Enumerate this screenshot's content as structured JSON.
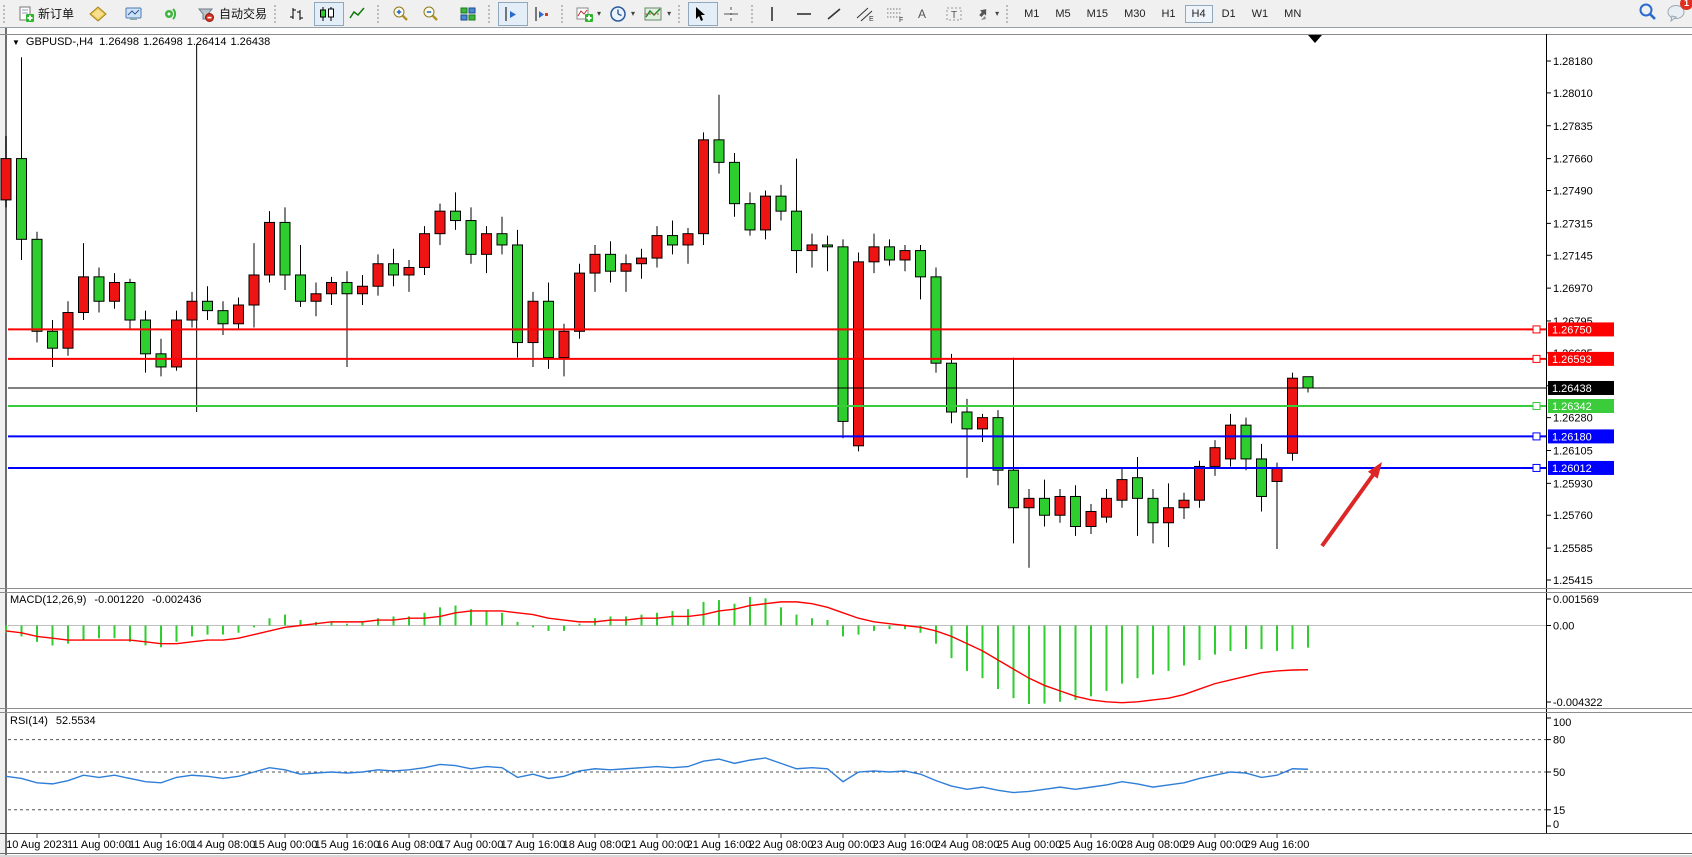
{
  "toolbar": {
    "new_order_label": "新订单",
    "auto_trading_label": "自动交易",
    "timeframes": [
      "M1",
      "M5",
      "M15",
      "M30",
      "H1",
      "H4",
      "D1",
      "W1",
      "MN"
    ],
    "active_timeframe": "H4",
    "active_chart_type": "candles",
    "notification_count": "1"
  },
  "chart": {
    "title": "GBPUSD-,H4",
    "ohlc": {
      "open": "1.26498",
      "high": "1.26498",
      "low": "1.26414",
      "close": "1.26438"
    },
    "price_ticks": [
      "1.28180",
      "1.28010",
      "1.27835",
      "1.27660",
      "1.27490",
      "1.27315",
      "1.27145",
      "1.26970",
      "1.26795",
      "1.26625",
      "1.26450",
      "1.26280",
      "1.26105",
      "1.25930",
      "1.25760",
      "1.25585",
      "1.25415"
    ],
    "date_labels": [
      "10 Aug 2023",
      "11 Aug 00:00",
      "11 Aug 16:00",
      "14 Aug 08:00",
      "15 Aug 00:00",
      "15 Aug 16:00",
      "16 Aug 08:00",
      "17 Aug 00:00",
      "17 Aug 16:00",
      "18 Aug 08:00",
      "21 Aug 00:00",
      "21 Aug 16:00",
      "22 Aug 08:00",
      "23 Aug 00:00",
      "23 Aug 16:00",
      "24 Aug 08:00",
      "25 Aug 00:00",
      "25 Aug 16:00",
      "28 Aug 08:00",
      "29 Aug 00:00",
      "29 Aug 16:00"
    ],
    "hlines": [
      {
        "price": 1.2675,
        "label": "1.26750",
        "color": "#ff0000",
        "width": 2,
        "is_price": false
      },
      {
        "price": 1.26593,
        "label": "1.26593",
        "color": "#ff0000",
        "width": 2,
        "is_price": false
      },
      {
        "price": 1.26438,
        "label": "1.26438",
        "color": "#000000",
        "width": 1,
        "is_price": true
      },
      {
        "price": 1.26342,
        "label": "1.26342",
        "color": "#3bcc3b",
        "width": 2,
        "is_price": false
      },
      {
        "price": 1.2618,
        "label": "1.26180",
        "color": "#0000ff",
        "width": 2,
        "is_price": false
      },
      {
        "price": 1.26012,
        "label": "1.26012",
        "color": "#0000ff",
        "width": 2,
        "is_price": false
      }
    ],
    "vline": {
      "bar_index": 12.3,
      "top_price": 1.2827,
      "bottom_price": 1.2631
    },
    "arrow": {
      "direction": "up-right",
      "color": "#dd2626"
    },
    "bull_color": "#ee1414",
    "bear_color": "#2fce2f",
    "wick_color": "#000000",
    "chart_data": {
      "type": "candlestick",
      "symbol": "GBPUSD",
      "period": "H4",
      "ylim": [
        1.25415,
        1.2818
      ],
      "candles": [
        [
          1.2744,
          1.2778,
          1.274,
          1.2766
        ],
        [
          1.2766,
          1.282,
          1.2712,
          1.2723
        ],
        [
          1.2723,
          1.2727,
          1.2668,
          1.2674
        ],
        [
          1.2674,
          1.268,
          1.2655,
          1.2665
        ],
        [
          1.2665,
          1.269,
          1.2661,
          1.2684
        ],
        [
          1.2684,
          1.2721,
          1.268,
          1.2703
        ],
        [
          1.2703,
          1.2708,
          1.2684,
          1.269
        ],
        [
          1.269,
          1.2705,
          1.2686,
          1.27
        ],
        [
          1.27,
          1.2702,
          1.2675,
          1.268
        ],
        [
          1.268,
          1.2685,
          1.2652,
          1.2662
        ],
        [
          1.2662,
          1.267,
          1.265,
          1.2655
        ],
        [
          1.2655,
          1.2685,
          1.2653,
          1.268
        ],
        [
          1.268,
          1.2695,
          1.2676,
          1.269
        ],
        [
          1.269,
          1.2698,
          1.268,
          1.2685
        ],
        [
          1.2685,
          1.269,
          1.2672,
          1.2678
        ],
        [
          1.2678,
          1.2692,
          1.2675,
          1.2688
        ],
        [
          1.2688,
          1.2721,
          1.2676,
          1.2704
        ],
        [
          1.2704,
          1.2738,
          1.27,
          1.2732
        ],
        [
          1.2732,
          1.274,
          1.2696,
          1.2704
        ],
        [
          1.2704,
          1.272,
          1.2687,
          1.269
        ],
        [
          1.269,
          1.27,
          1.2682,
          1.2694
        ],
        [
          1.2694,
          1.2703,
          1.2688,
          1.27
        ],
        [
          1.27,
          1.2706,
          1.2655,
          1.2694
        ],
        [
          1.2694,
          1.2704,
          1.2688,
          1.2698
        ],
        [
          1.2698,
          1.2715,
          1.2693,
          1.271
        ],
        [
          1.271,
          1.2718,
          1.2698,
          1.2704
        ],
        [
          1.2704,
          1.2712,
          1.2695,
          1.2708
        ],
        [
          1.2708,
          1.273,
          1.2704,
          1.2726
        ],
        [
          1.2726,
          1.2742,
          1.272,
          1.2738
        ],
        [
          1.2738,
          1.2748,
          1.2728,
          1.2733
        ],
        [
          1.2733,
          1.274,
          1.271,
          1.2715
        ],
        [
          1.2715,
          1.273,
          1.2705,
          1.2726
        ],
        [
          1.2726,
          1.2735,
          1.2715,
          1.272
        ],
        [
          1.272,
          1.2728,
          1.266,
          1.2668
        ],
        [
          1.2668,
          1.2695,
          1.2655,
          1.269
        ],
        [
          1.269,
          1.27,
          1.2654,
          1.266
        ],
        [
          1.266,
          1.2678,
          1.265,
          1.2674
        ],
        [
          1.2674,
          1.271,
          1.267,
          1.2705
        ],
        [
          1.2705,
          1.272,
          1.2695,
          1.2715
        ],
        [
          1.2715,
          1.2722,
          1.27,
          1.2706
        ],
        [
          1.2706,
          1.2715,
          1.2695,
          1.271
        ],
        [
          1.271,
          1.2718,
          1.2702,
          1.2713
        ],
        [
          1.2713,
          1.273,
          1.2708,
          1.2725
        ],
        [
          1.2725,
          1.2733,
          1.2715,
          1.272
        ],
        [
          1.272,
          1.2729,
          1.271,
          1.2726
        ],
        [
          1.2726,
          1.278,
          1.272,
          1.2776
        ],
        [
          1.2776,
          1.28,
          1.2758,
          1.2764
        ],
        [
          1.2764,
          1.2769,
          1.2735,
          1.2742
        ],
        [
          1.2742,
          1.2748,
          1.2725,
          1.2728
        ],
        [
          1.2728,
          1.2749,
          1.2723,
          1.2746
        ],
        [
          1.2746,
          1.2752,
          1.2733,
          1.2738
        ],
        [
          1.2738,
          1.2766,
          1.2705,
          1.2717
        ],
        [
          1.2717,
          1.2726,
          1.2708,
          1.272
        ],
        [
          1.272,
          1.2725,
          1.2706,
          1.2719
        ],
        [
          1.2719,
          1.2723,
          1.2617,
          1.2626
        ],
        [
          1.2613,
          1.2716,
          1.261,
          1.2711
        ],
        [
          1.2711,
          1.2726,
          1.2705,
          1.2719
        ],
        [
          1.2719,
          1.2723,
          1.2709,
          1.2712
        ],
        [
          1.2712,
          1.272,
          1.2706,
          1.2717
        ],
        [
          1.2717,
          1.272,
          1.2691,
          1.2703
        ],
        [
          1.2703,
          1.2708,
          1.2652,
          1.2657
        ],
        [
          1.2657,
          1.2662,
          1.2625,
          1.2631
        ],
        [
          1.2631,
          1.2638,
          1.2596,
          1.2622
        ],
        [
          1.2622,
          1.263,
          1.2615,
          1.2628
        ],
        [
          1.2628,
          1.2632,
          1.2592,
          1.26
        ],
        [
          1.26,
          1.266,
          1.2561,
          1.258
        ],
        [
          1.258,
          1.259,
          1.2548,
          1.2585
        ],
        [
          1.2585,
          1.2595,
          1.257,
          1.2576
        ],
        [
          1.2576,
          1.259,
          1.2572,
          1.2586
        ],
        [
          1.2586,
          1.2592,
          1.2565,
          1.257
        ],
        [
          1.257,
          1.2582,
          1.2566,
          1.2578
        ],
        [
          1.2575,
          1.259,
          1.2572,
          1.2585
        ],
        [
          1.2584,
          1.2601,
          1.258,
          1.2595
        ],
        [
          1.2596,
          1.2607,
          1.2565,
          1.2585
        ],
        [
          1.2585,
          1.259,
          1.2561,
          1.2572
        ],
        [
          1.2572,
          1.2593,
          1.2559,
          1.258
        ],
        [
          1.258,
          1.2588,
          1.2574,
          1.2584
        ],
        [
          1.2584,
          1.2605,
          1.258,
          1.2602
        ],
        [
          1.2602,
          1.2616,
          1.2597,
          1.2612
        ],
        [
          1.2606,
          1.263,
          1.2602,
          1.2624
        ],
        [
          1.2624,
          1.2628,
          1.26,
          1.2606
        ],
        [
          1.2606,
          1.2614,
          1.2578,
          1.2586
        ],
        [
          1.2594,
          1.2604,
          1.2558,
          1.2601
        ],
        [
          1.2609,
          1.2652,
          1.2605,
          1.2649
        ],
        [
          1.26498,
          1.26498,
          1.26414,
          1.26438
        ]
      ]
    }
  },
  "macd": {
    "label": "MACD(12,26,9)",
    "main_value": "-0.001220",
    "signal_value": "-0.002436",
    "histogram_color": "#2fce2f",
    "signal_color": "#ff0000",
    "ticks": [
      {
        "v": 0.001569,
        "label": "0.001569"
      },
      {
        "v": 0,
        "label": "0.00"
      },
      {
        "v": -0.004322,
        "label": "-0.004322"
      }
    ],
    "main": [
      -0.0004,
      -0.0006,
      -0.0009,
      -0.0011,
      -0.001,
      -0.0008,
      -0.0007,
      -0.0007,
      -0.0009,
      -0.0011,
      -0.0012,
      -0.0009,
      -0.0006,
      -0.0005,
      -0.0005,
      -0.0004,
      -0.0001,
      0.0004,
      0.0006,
      0.0003,
      0.0002,
      0.0002,
      0.0001,
      0.0002,
      0.0004,
      0.0005,
      0.0005,
      0.0007,
      0.001,
      0.0011,
      0.0009,
      0.0008,
      0.0007,
      0.0002,
      -0.0001,
      -0.0003,
      -0.0003,
      0.0001,
      0.0004,
      0.0005,
      0.0005,
      0.0006,
      0.0007,
      0.0008,
      0.0009,
      0.0013,
      0.0014,
      0.0012,
      0.00157,
      0.0015,
      0.001,
      0.0006,
      0.0004,
      0.0003,
      -0.0006,
      -0.0005,
      -0.0003,
      -0.0002,
      -0.0002,
      -0.0004,
      -0.001,
      -0.0018,
      -0.0025,
      -0.0029,
      -0.0035,
      -0.004,
      -0.00432,
      -0.0043,
      -0.0042,
      -0.0041,
      -0.0039,
      -0.0036,
      -0.0032,
      -0.0029,
      -0.0027,
      -0.0025,
      -0.0022,
      -0.0019,
      -0.0016,
      -0.0014,
      -0.0013,
      -0.0013,
      -0.0014,
      -0.0013,
      -0.00122
    ],
    "signal": [
      -0.0003,
      -0.0004,
      -0.0006,
      -0.0007,
      -0.0008,
      -0.0008,
      -0.0008,
      -0.0008,
      -0.0008,
      -0.0009,
      -0.001,
      -0.001,
      -0.0009,
      -0.0008,
      -0.0008,
      -0.0007,
      -0.0005,
      -0.0003,
      -0.0001,
      0.0,
      0.0001,
      0.0002,
      0.0002,
      0.0002,
      0.0003,
      0.0003,
      0.0004,
      0.0004,
      0.0005,
      0.0007,
      0.0008,
      0.0008,
      0.0008,
      0.0007,
      0.0006,
      0.0004,
      0.0003,
      0.0002,
      0.0002,
      0.0003,
      0.0003,
      0.0004,
      0.0004,
      0.0005,
      0.0005,
      0.0006,
      0.0008,
      0.0009,
      0.0011,
      0.0012,
      0.0013,
      0.0013,
      0.0012,
      0.001,
      0.0007,
      0.0004,
      0.0002,
      0.0001,
      0.0,
      -0.0001,
      -0.0003,
      -0.0006,
      -0.001,
      -0.0014,
      -0.0019,
      -0.0024,
      -0.0029,
      -0.0033,
      -0.0036,
      -0.0039,
      -0.0041,
      -0.0042,
      -0.00425,
      -0.0042,
      -0.0041,
      -0.004,
      -0.0038,
      -0.0035,
      -0.0032,
      -0.003,
      -0.0028,
      -0.0026,
      -0.0025,
      -0.00245,
      -0.002436
    ]
  },
  "rsi": {
    "label": "RSI(14)",
    "value": "52.5534",
    "line_color": "#2f7ed8",
    "ticks": [
      {
        "v": 100,
        "label": "100",
        "dashed": false
      },
      {
        "v": 80,
        "label": "80",
        "dashed": true
      },
      {
        "v": 50,
        "label": "50",
        "dashed": true
      },
      {
        "v": 15,
        "label": "15",
        "dashed": true
      },
      {
        "v": 0,
        "label": "0",
        "dashed": false
      }
    ],
    "values": [
      46,
      44,
      40,
      39,
      42,
      47,
      45,
      47,
      44,
      41,
      40,
      45,
      47,
      46,
      44,
      46,
      50,
      54,
      52,
      48,
      49,
      50,
      49,
      50,
      52,
      51,
      52,
      54,
      57,
      56,
      53,
      55,
      54,
      45,
      48,
      44,
      46,
      51,
      53,
      52,
      53,
      54,
      55,
      54,
      55,
      60,
      62,
      58,
      61,
      63,
      58,
      53,
      54,
      53,
      41,
      50,
      51,
      50,
      51,
      48,
      42,
      37,
      34,
      36,
      33,
      31,
      32,
      34,
      36,
      34,
      36,
      38,
      41,
      39,
      36,
      38,
      40,
      44,
      47,
      50,
      49,
      45,
      47,
      53,
      52.5534
    ]
  }
}
